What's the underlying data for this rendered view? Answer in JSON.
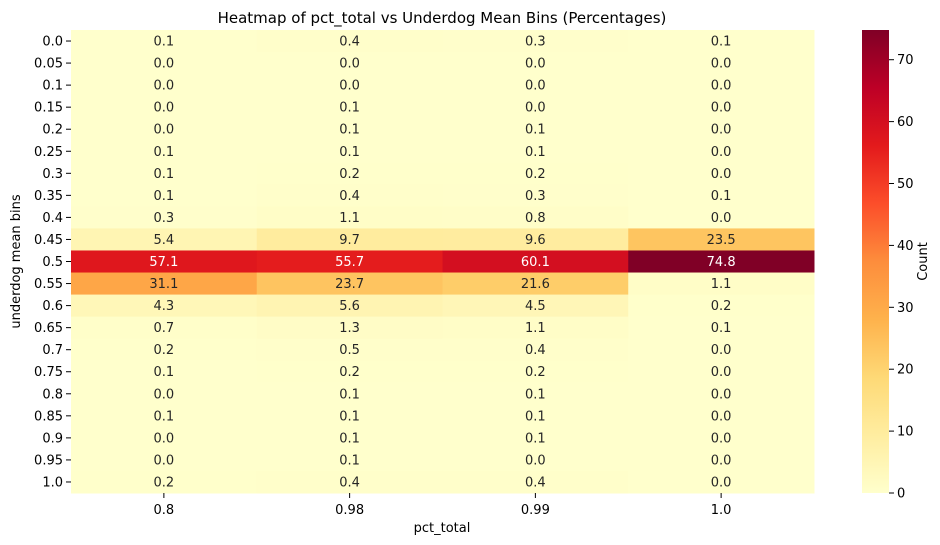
{
  "chart_data": {
    "type": "heatmap",
    "title": "Heatmap of pct_total vs Underdog Mean Bins (Percentages)",
    "xlabel": "pct_total",
    "ylabel": "underdog mean bins",
    "x_categories": [
      "0.8",
      "0.98",
      "0.99",
      "1.0"
    ],
    "y_categories": [
      "0.0",
      "0.05",
      "0.1",
      "0.15",
      "0.2",
      "0.25",
      "0.3",
      "0.35",
      "0.4",
      "0.45",
      "0.5",
      "0.55",
      "0.6",
      "0.65",
      "0.7",
      "0.75",
      "0.8",
      "0.85",
      "0.9",
      "0.95",
      "1.0"
    ],
    "values": [
      [
        0.1,
        0.4,
        0.3,
        0.1
      ],
      [
        0.0,
        0.0,
        0.0,
        0.0
      ],
      [
        0.0,
        0.0,
        0.0,
        0.0
      ],
      [
        0.0,
        0.1,
        0.0,
        0.0
      ],
      [
        0.0,
        0.1,
        0.1,
        0.0
      ],
      [
        0.1,
        0.1,
        0.1,
        0.0
      ],
      [
        0.1,
        0.2,
        0.2,
        0.0
      ],
      [
        0.1,
        0.4,
        0.3,
        0.1
      ],
      [
        0.3,
        1.1,
        0.8,
        0.0
      ],
      [
        5.4,
        9.7,
        9.6,
        23.5
      ],
      [
        57.1,
        55.7,
        60.1,
        74.8
      ],
      [
        31.1,
        23.7,
        21.6,
        1.1
      ],
      [
        4.3,
        5.6,
        4.5,
        0.2
      ],
      [
        0.7,
        1.3,
        1.1,
        0.1
      ],
      [
        0.2,
        0.5,
        0.4,
        0.0
      ],
      [
        0.1,
        0.2,
        0.2,
        0.0
      ],
      [
        0.0,
        0.1,
        0.1,
        0.0
      ],
      [
        0.1,
        0.1,
        0.1,
        0.0
      ],
      [
        0.0,
        0.1,
        0.1,
        0.0
      ],
      [
        0.0,
        0.1,
        0.0,
        0.0
      ],
      [
        0.2,
        0.4,
        0.4,
        0.0
      ]
    ],
    "colorbar": {
      "label": "Count",
      "ticks": [
        "0",
        "10",
        "20",
        "30",
        "40",
        "50",
        "60",
        "70"
      ],
      "range": [
        0,
        74.8
      ]
    },
    "colormap": [
      "#ffffcc",
      "#ffeda0",
      "#fed976",
      "#feb24c",
      "#fd8d3c",
      "#fc4e2a",
      "#e31a1c",
      "#bd0026",
      "#800026"
    ],
    "text_dark": "#262626",
    "text_light": "#ffffff"
  }
}
